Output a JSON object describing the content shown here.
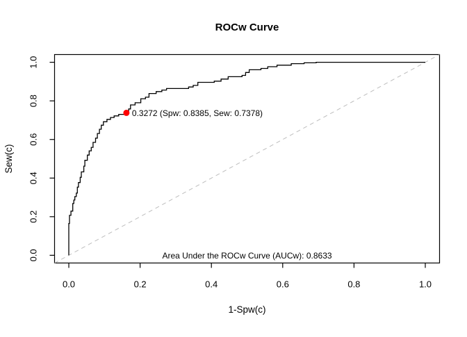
{
  "title": "ROCw Curve",
  "axes": {
    "x_label": "1-Spw(c)",
    "y_label": "Sew(c)"
  },
  "annotations": {
    "cutoff_label": "0.3272 (Spw: 0.8385, Sew: 0.7378)",
    "auc_label": "Area Under the ROCw Curve (AUCw): 0.8633"
  },
  "colors": {
    "curve": "#000000",
    "diagonal": "#bdbdbd",
    "marker": "#ff0000",
    "axis": "#000000",
    "background": "#ffffff"
  },
  "chart_data": {
    "type": "line",
    "subtype": "roc-step-curve",
    "title": "ROCw Curve",
    "xlabel": "1-Spw(c)",
    "ylabel": "Sew(c)",
    "xlim": [
      0,
      1
    ],
    "ylim": [
      0,
      1
    ],
    "x_ticks": [
      0.0,
      0.2,
      0.4,
      0.6,
      0.8,
      1.0
    ],
    "y_ticks": [
      0.0,
      0.2,
      0.4,
      0.6,
      0.8,
      1.0
    ],
    "grid": false,
    "reference_line": {
      "style": "dashed",
      "from": [
        0,
        0
      ],
      "to": [
        1,
        1
      ]
    },
    "marker_point": {
      "cutoff": 0.3272,
      "spw": 0.8385,
      "sew": 0.7378,
      "x": 0.1615,
      "y": 0.7378
    },
    "auc": 0.8633,
    "auc_text_position": {
      "x": 0.5,
      "y": 0.0
    },
    "series": [
      {
        "name": "ROCw",
        "step": true,
        "points": [
          [
            0.0,
            0.0
          ],
          [
            0.0,
            0.165
          ],
          [
            0.002,
            0.207
          ],
          [
            0.006,
            0.229
          ],
          [
            0.011,
            0.268
          ],
          [
            0.014,
            0.286
          ],
          [
            0.017,
            0.304
          ],
          [
            0.021,
            0.322
          ],
          [
            0.024,
            0.353
          ],
          [
            0.027,
            0.377
          ],
          [
            0.032,
            0.404
          ],
          [
            0.035,
            0.432
          ],
          [
            0.042,
            0.462
          ],
          [
            0.045,
            0.492
          ],
          [
            0.052,
            0.519
          ],
          [
            0.057,
            0.541
          ],
          [
            0.063,
            0.559
          ],
          [
            0.068,
            0.585
          ],
          [
            0.075,
            0.607
          ],
          [
            0.08,
            0.631
          ],
          [
            0.086,
            0.653
          ],
          [
            0.091,
            0.674
          ],
          [
            0.097,
            0.692
          ],
          [
            0.107,
            0.704
          ],
          [
            0.117,
            0.714
          ],
          [
            0.127,
            0.722
          ],
          [
            0.14,
            0.73
          ],
          [
            0.1615,
            0.7378
          ],
          [
            0.168,
            0.758
          ],
          [
            0.173,
            0.779
          ],
          [
            0.186,
            0.79
          ],
          [
            0.202,
            0.811
          ],
          [
            0.215,
            0.819
          ],
          [
            0.225,
            0.838
          ],
          [
            0.245,
            0.848
          ],
          [
            0.261,
            0.856
          ],
          [
            0.274,
            0.864
          ],
          [
            0.336,
            0.872
          ],
          [
            0.349,
            0.88
          ],
          [
            0.362,
            0.896
          ],
          [
            0.408,
            0.902
          ],
          [
            0.427,
            0.913
          ],
          [
            0.447,
            0.925
          ],
          [
            0.486,
            0.932
          ],
          [
            0.496,
            0.947
          ],
          [
            0.506,
            0.961
          ],
          [
            0.539,
            0.968
          ],
          [
            0.558,
            0.977
          ],
          [
            0.584,
            0.985
          ],
          [
            0.624,
            0.993
          ],
          [
            0.66,
            0.997
          ],
          [
            0.694,
            1.0
          ],
          [
            1.0,
            1.0
          ]
        ]
      }
    ]
  }
}
